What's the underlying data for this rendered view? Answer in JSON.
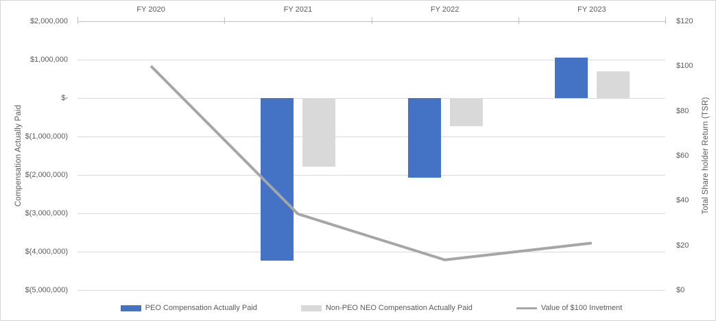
{
  "chart": {
    "left_axis_title": "Compensation Actually Paid",
    "right_axis_title": "Total Share holder Return (TSR)"
  },
  "legend": {
    "items": [
      {
        "label": "PEO Compensation Actually Paid",
        "swatch": "bar",
        "color": "#4472c4"
      },
      {
        "label": "Non-PEO NEO Compensation Actually Paid",
        "swatch": "bar",
        "color": "#d9d9d9"
      },
      {
        "label": "Value of $100 Invetment",
        "swatch": "line",
        "color": "#a6a6a6"
      }
    ]
  },
  "chart_data": {
    "type": "bar",
    "subtype": "combo-bar-line",
    "categories": [
      "FY 2020",
      "FY 2021",
      "FY 2022",
      "FY 2023"
    ],
    "series": [
      {
        "name": "PEO Compensation Actually Paid",
        "type": "bar",
        "axis": "left",
        "color": "#4472c4",
        "values": [
          null,
          -4230000,
          -2070000,
          1050000
        ]
      },
      {
        "name": "Non-PEO NEO Compensation Actually Paid",
        "type": "bar",
        "axis": "left",
        "color": "#d9d9d9",
        "values": [
          null,
          -1790000,
          -730000,
          690000
        ]
      },
      {
        "name": "Value of $100 Invetment",
        "type": "line",
        "axis": "right",
        "color": "#a6a6a6",
        "values": [
          100,
          34,
          13.5,
          21
        ]
      }
    ],
    "left_axis": {
      "title": "Compensation Actually Paid",
      "min": -5000000,
      "max": 2000000,
      "step": 1000000,
      "tick_labels": [
        "$2,000,000",
        "$1,000,000",
        "$-",
        "$(1,000,000)",
        "$(2,000,000)",
        "$(3,000,000)",
        "$(4,000,000)",
        "$(5,000,000)"
      ]
    },
    "right_axis": {
      "title": "Total Share holder Return (TSR)",
      "min": 0,
      "max": 120,
      "step": 20,
      "tick_labels": [
        "$120",
        "$100",
        "$80",
        "$60",
        "$40",
        "$20",
        "$0"
      ]
    },
    "grid": true,
    "category_axis_position": "top",
    "legend_position": "bottom"
  },
  "colors": {
    "text": "#595959",
    "gridline": "#d9d9d9",
    "axis_line": "#bfbfbf",
    "peo_bar": "#4472c4",
    "non_peo_bar": "#d9d9d9",
    "tsr_line": "#a6a6a6"
  }
}
